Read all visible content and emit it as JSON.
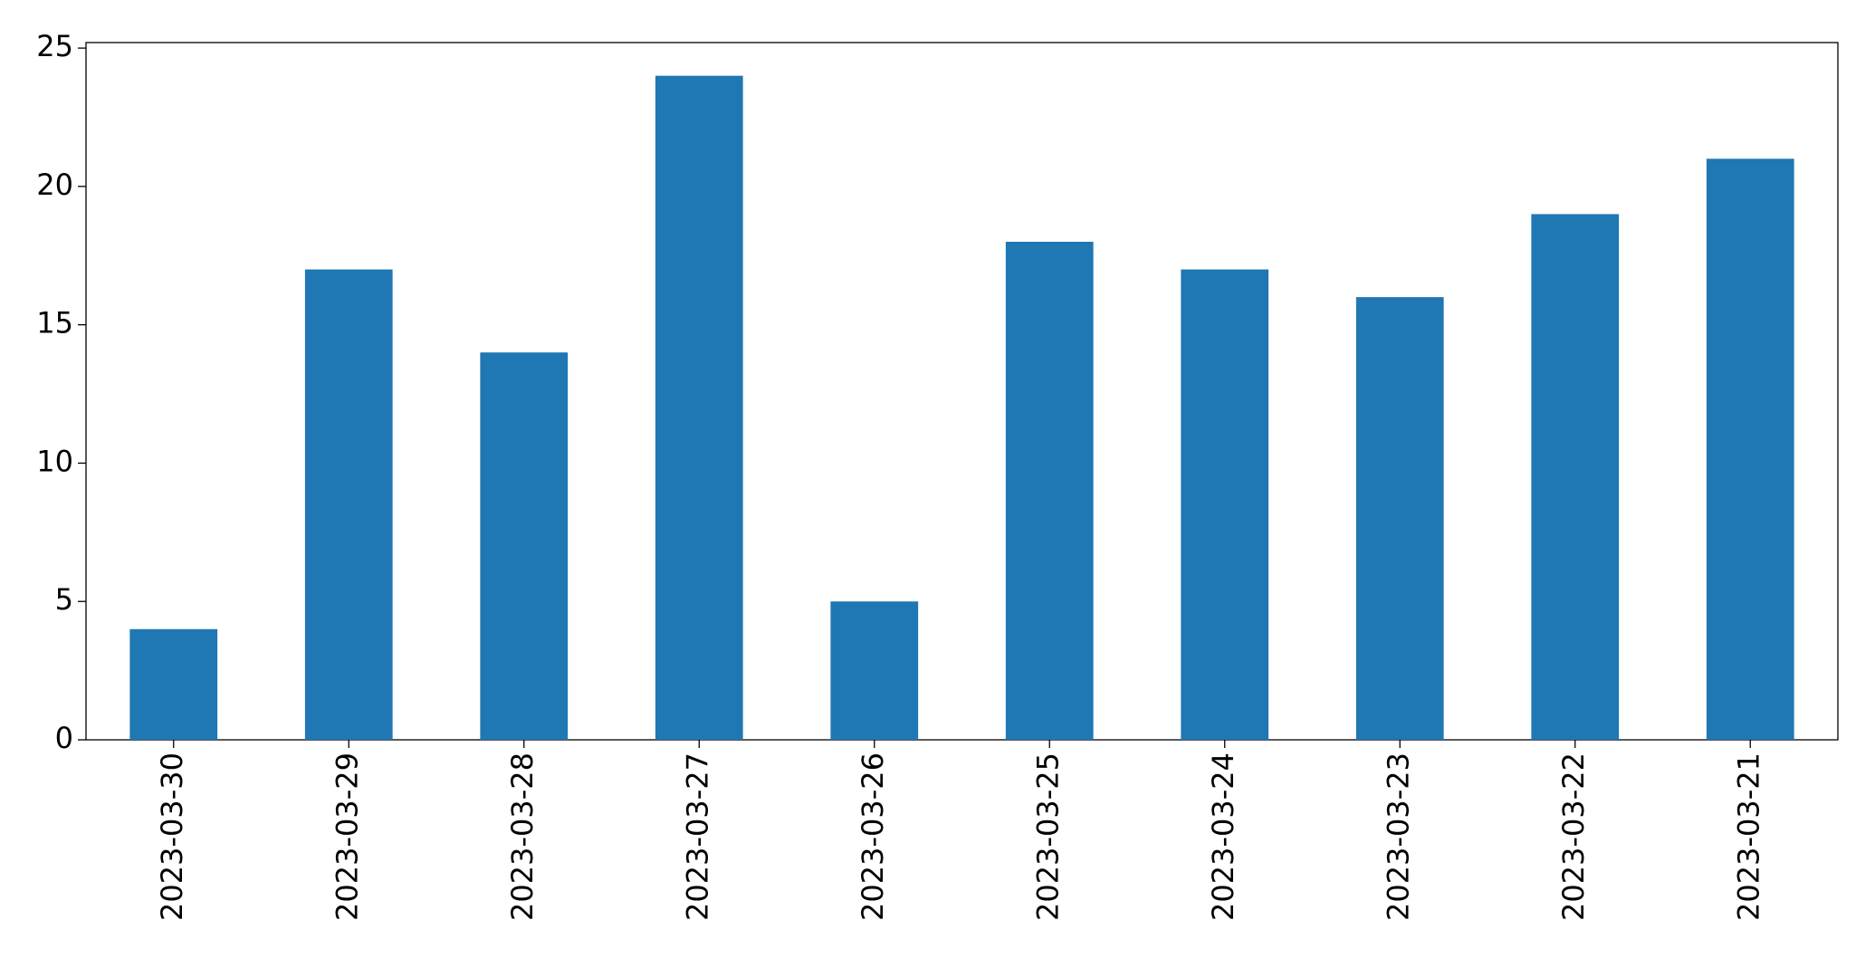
{
  "chart_data": {
    "type": "bar",
    "categories": [
      "2023-03-30",
      "2023-03-29",
      "2023-03-28",
      "2023-03-27",
      "2023-03-26",
      "2023-03-25",
      "2023-03-24",
      "2023-03-23",
      "2023-03-22",
      "2023-03-21"
    ],
    "values": [
      4,
      17,
      14,
      24,
      5,
      18,
      17,
      16,
      19,
      21
    ],
    "color": "#1f77b4",
    "ylim": [
      0,
      25.2
    ],
    "yticks": [
      0,
      5,
      10,
      15,
      20,
      25
    ],
    "grid": false
  }
}
